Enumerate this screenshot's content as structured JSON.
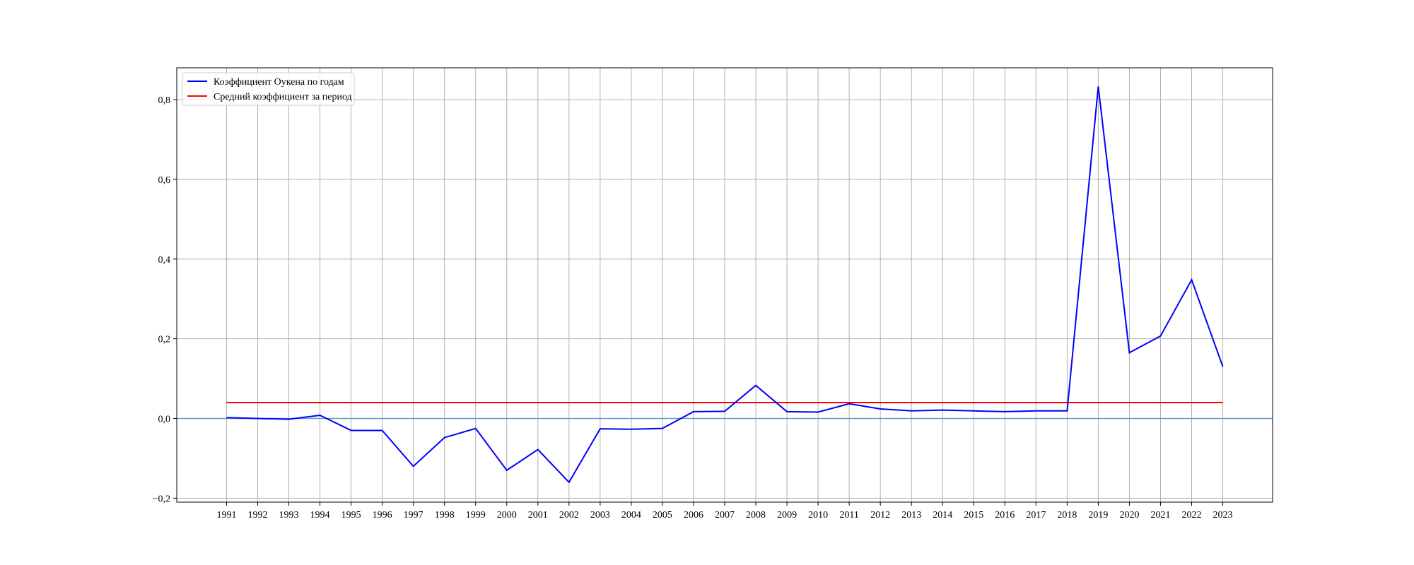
{
  "chart_data": {
    "type": "line",
    "title": "",
    "xlabel": "",
    "ylabel": "",
    "x": [
      "1991",
      "1992",
      "1993",
      "1994",
      "1995",
      "1996",
      "1997",
      "1998",
      "1999",
      "2000",
      "2001",
      "2002",
      "2003",
      "2004",
      "2005",
      "2006",
      "2007",
      "2008",
      "2009",
      "2010",
      "2011",
      "2012",
      "2013",
      "2014",
      "2015",
      "2016",
      "2017",
      "2018",
      "2019",
      "2020",
      "2021",
      "2022",
      "2023"
    ],
    "series": [
      {
        "name": "Коэффициент Оукена по годам",
        "color": "#0000ff",
        "values": [
          0.002,
          0.0,
          -0.002,
          0.008,
          -0.03,
          -0.03,
          -0.12,
          -0.048,
          -0.025,
          -0.13,
          -0.078,
          -0.16,
          -0.026,
          -0.027,
          -0.025,
          0.017,
          0.018,
          0.083,
          0.017,
          0.016,
          0.037,
          0.024,
          0.019,
          0.021,
          0.019,
          0.017,
          0.019,
          0.019,
          0.833,
          0.165,
          0.207,
          0.348,
          0.13
        ]
      },
      {
        "name": "Средний коэффициент за период",
        "color": "#ff0000",
        "values": [
          0.04,
          0.04,
          0.04,
          0.04,
          0.04,
          0.04,
          0.04,
          0.04,
          0.04,
          0.04,
          0.04,
          0.04,
          0.04,
          0.04,
          0.04,
          0.04,
          0.04,
          0.04,
          0.04,
          0.04,
          0.04,
          0.04,
          0.04,
          0.04,
          0.04,
          0.04,
          0.04,
          0.04,
          0.04,
          0.04,
          0.04,
          0.04,
          0.04
        ]
      }
    ],
    "reference_line": {
      "value": 0.0,
      "color": "#6699cc"
    },
    "yticks": [
      -0.2,
      0.0,
      0.2,
      0.4,
      0.6,
      0.8
    ],
    "ytick_labels": [
      "−0,2",
      "0,0",
      "0,2",
      "0,4",
      "0,6",
      "0,8"
    ],
    "ylim": [
      -0.21,
      0.88
    ],
    "xlim": [
      1989.4,
      2024.6
    ],
    "grid": true,
    "legend_position": "top-left"
  }
}
